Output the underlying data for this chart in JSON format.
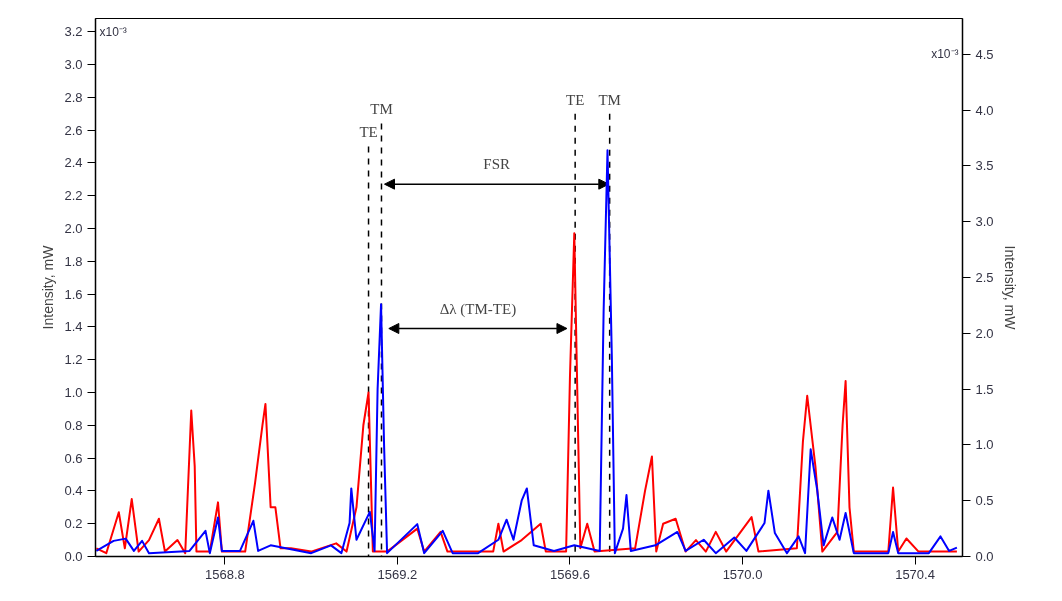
{
  "chart_data": {
    "type": "line",
    "xlabel": null,
    "ylabel": "Intensity, mW",
    "y2label": "Intensity, mW",
    "xlim": [
      1568.5,
      1570.51
    ],
    "ylim": [
      0,
      3.28
    ],
    "y2lim": [
      0,
      4.82
    ],
    "xticks": [
      1568.8,
      1569.2,
      1569.6,
      {
        "value": 1570,
        "label": "1570.0"
      },
      1570.4
    ],
    "yticks": [
      {
        "value": 0,
        "label": "0.0"
      },
      0.2,
      0.4,
      0.6,
      0.8,
      {
        "value": 1,
        "label": "1.0"
      },
      1.2,
      1.4,
      1.6,
      1.8,
      {
        "value": 2,
        "label": "2.0"
      },
      2.2,
      2.4,
      2.6,
      2.8,
      {
        "value": 3,
        "label": "3.0"
      },
      3.2
    ],
    "y2ticks": [
      {
        "value": 0,
        "label": "0.0"
      },
      0.5,
      {
        "value": 1,
        "label": "1.0"
      },
      1.5,
      {
        "value": 2,
        "label": "2.0"
      },
      2.5,
      {
        "value": 3,
        "label": "3.0"
      },
      3.5,
      {
        "value": 4,
        "label": "4.0"
      },
      4.5
    ],
    "grid": false,
    "marker": "none",
    "line_style": "solid",
    "series": [
      {
        "color": "#ff0000",
        "x": [
          1568.502,
          1568.525,
          1568.554,
          1568.568,
          1568.584,
          1568.6,
          1568.624,
          1568.647,
          1568.661,
          1568.69,
          1568.708,
          1568.722,
          1568.73,
          1568.734,
          1568.765,
          1568.784,
          1568.793,
          1568.847,
          1568.87,
          1568.887,
          1568.894,
          1568.906,
          1568.917,
          1568.929,
          1568.953,
          1569.0,
          1569.058,
          1569.082,
          1569.105,
          1569.121,
          1569.133,
          1569.143,
          1569.176,
          1569.246,
          1569.262,
          1569.3,
          1569.316,
          1569.422,
          1569.434,
          1569.446,
          1569.488,
          1569.532,
          1569.544,
          1569.591,
          1569.6,
          1569.61,
          1569.617,
          1569.624,
          1569.64,
          1569.657,
          1569.751,
          1569.774,
          1569.79,
          1569.8,
          1569.816,
          1569.845,
          1569.868,
          1569.892,
          1569.915,
          1569.938,
          1569.962,
          1570.021,
          1570.037,
          1570.126,
          1570.14,
          1570.15,
          1570.169,
          1570.185,
          1570.22,
          1570.232,
          1570.239,
          1570.248,
          1570.258,
          1570.338,
          1570.349,
          1570.361,
          1570.38,
          1570.408,
          1570.497
        ],
        "values": [
          0.05,
          0.02,
          0.27,
          0.05,
          0.35,
          0.03,
          0.1,
          0.23,
          0.03,
          0.1,
          0.02,
          0.89,
          0.55,
          0.03,
          0.03,
          0.33,
          0.03,
          0.03,
          0.45,
          0.8,
          0.93,
          0.3,
          0.3,
          0.05,
          0.05,
          0.03,
          0.08,
          0.03,
          0.3,
          0.8,
          1.0,
          0.03,
          0.03,
          0.17,
          0.03,
          0.15,
          0.03,
          0.03,
          0.2,
          0.03,
          0.1,
          0.2,
          0.03,
          0.03,
          1.1,
          1.97,
          1.0,
          0.05,
          0.2,
          0.03,
          0.05,
          0.4,
          0.61,
          0.03,
          0.2,
          0.23,
          0.03,
          0.1,
          0.03,
          0.15,
          0.03,
          0.24,
          0.03,
          0.05,
          0.7,
          0.98,
          0.55,
          0.03,
          0.15,
          0.8,
          1.07,
          0.3,
          0.03,
          0.03,
          0.42,
          0.03,
          0.11,
          0.03,
          0.03
        ]
      },
      {
        "color": "#0000ff",
        "axis": "y2",
        "x": [
          1568.502,
          1568.542,
          1568.57,
          1568.589,
          1568.608,
          1568.624,
          1568.718,
          1568.755,
          1568.765,
          1568.784,
          1568.793,
          1568.835,
          1568.866,
          1568.877,
          1568.906,
          1569.0,
          1569.046,
          1569.07,
          1569.089,
          1569.093,
          1569.105,
          1569.136,
          1569.147,
          1569.154,
          1569.162,
          1569.169,
          1569.176,
          1569.246,
          1569.262,
          1569.305,
          1569.328,
          1569.387,
          1569.434,
          1569.453,
          1569.469,
          1569.488,
          1569.5,
          1569.516,
          1569.563,
          1569.61,
          1569.669,
          1569.678,
          1569.687,
          1569.697,
          1569.704,
          1569.723,
          1569.731,
          1569.741,
          1569.798,
          1569.849,
          1569.868,
          1569.91,
          1569.938,
          1569.981,
          1570.009,
          1570.051,
          1570.06,
          1570.075,
          1570.103,
          1570.13,
          1570.145,
          1570.158,
          1570.173,
          1570.188,
          1570.208,
          1570.225,
          1570.239,
          1570.258,
          1570.338,
          1570.349,
          1570.361,
          1570.432,
          1570.459,
          1570.479,
          1570.497
        ],
        "values": [
          0.05,
          0.14,
          0.16,
          0.05,
          0.14,
          0.03,
          0.05,
          0.23,
          0.03,
          0.35,
          0.05,
          0.05,
          0.32,
          0.05,
          0.1,
          0.03,
          0.1,
          0.03,
          0.3,
          0.61,
          0.15,
          0.4,
          0.05,
          1.5,
          2.26,
          1.0,
          0.03,
          0.29,
          0.03,
          0.23,
          0.03,
          0.03,
          0.15,
          0.33,
          0.15,
          0.5,
          0.61,
          0.1,
          0.05,
          0.1,
          0.05,
          2.2,
          3.64,
          1.8,
          0.03,
          0.25,
          0.55,
          0.05,
          0.1,
          0.22,
          0.05,
          0.15,
          0.03,
          0.17,
          0.05,
          0.3,
          0.59,
          0.21,
          0.03,
          0.18,
          0.03,
          0.96,
          0.6,
          0.1,
          0.35,
          0.15,
          0.39,
          0.03,
          0.03,
          0.22,
          0.03,
          0.03,
          0.18,
          0.05,
          0.08
        ]
      }
    ],
    "annotations": [
      "x10⁻³",
      "x10⁻³",
      "TE",
      "TM",
      "TE",
      "TM",
      "FSR",
      "Δλ (TM-TE)"
    ]
  }
}
